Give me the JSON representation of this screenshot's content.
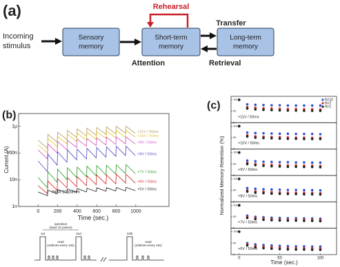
{
  "diagram": {
    "label": "(a)",
    "input": [
      "Incoming",
      "stimulus"
    ],
    "nodes": [
      {
        "label": [
          "Sensory",
          "memory"
        ]
      },
      {
        "label": [
          "Short-term",
          "memory"
        ]
      },
      {
        "label": [
          "Long-term",
          "memory"
        ]
      }
    ],
    "edges": {
      "rehearsal": "Rehearsal",
      "transfer": "Transfer",
      "attention": "Attention",
      "retrieval": "Retrieval"
    }
  },
  "pulse_diagram": {
    "operation": [
      "operation",
      "(input 10 pulses)"
    ],
    "pulses": [
      "1st",
      "2nd",
      "10th"
    ],
    "read": [
      "read",
      "(10times every 10s)"
    ]
  },
  "chart_data": [
    {
      "type": "line",
      "label": "(b)",
      "xlabel": "Time (sec.)",
      "ylabel": "Current (A)",
      "annotation": "Input 10 pulses",
      "ylog": true,
      "xlim": [
        -200,
        1340
      ],
      "ylim": [
        1e-09,
        3e-06
      ],
      "xticks": [
        0,
        200,
        400,
        600,
        800,
        1000
      ],
      "yticks": [
        {
          "value": 1e-09,
          "label": "1n"
        },
        {
          "value": 1e-08,
          "label": "10n"
        },
        {
          "value": 1e-07,
          "label": "100n"
        },
        {
          "value": 1e-06,
          "label": "1μ"
        }
      ],
      "x": [
        0,
        95,
        100,
        195,
        200,
        295,
        300,
        395,
        400,
        495,
        500,
        595,
        600,
        695,
        700,
        795,
        800,
        895,
        900,
        995
      ],
      "series": [
        {
          "name": "+11V / 50ms",
          "color": "#b9a16a",
          "values": [
            3e-07,
            1.5e-07,
            5e-07,
            2.5e-07,
            6e-07,
            3.2e-07,
            7e-07,
            3.8e-07,
            8e-07,
            4.3e-07,
            8.5e-07,
            4.6e-07,
            9e-07,
            5e-07,
            9.5e-07,
            5.2e-07,
            1e-06,
            5.5e-07,
            1e-06,
            5.5e-07
          ]
        },
        {
          "name": "+10V / 50ms",
          "color": "#e2c43c",
          "values": [
            2e-07,
            1e-07,
            3.5e-07,
            1.7e-07,
            4.2e-07,
            2.2e-07,
            5e-07,
            2.7e-07,
            5.5e-07,
            3e-07,
            6e-07,
            3.2e-07,
            6.3e-07,
            3.5e-07,
            6.6e-07,
            3.7e-07,
            7e-07,
            3.8e-07,
            7e-07,
            3.9e-07
          ]
        },
        {
          "name": "+9V / 50ms",
          "color": "#d35fc3",
          "values": [
            1.3e-07,
            6e-08,
            2.2e-07,
            1e-07,
            2.7e-07,
            1.3e-07,
            3e-07,
            1.6e-07,
            3.3e-07,
            1.8e-07,
            3.5e-07,
            1.9e-07,
            3.7e-07,
            2e-07,
            3.9e-07,
            2.1e-07,
            4e-07,
            2.2e-07,
            4e-07,
            2.2e-07
          ]
        },
        {
          "name": "+8V / 50ms",
          "color": "#5a55c4",
          "values": [
            5e-08,
            2e-08,
            9e-08,
            3.5e-08,
            1.1e-07,
            4.5e-08,
            1.3e-07,
            5.5e-08,
            1.4e-07,
            6e-08,
            1.5e-07,
            6.5e-08,
            1.6e-07,
            7e-08,
            1.7e-07,
            7.5e-08,
            1.8e-07,
            8e-08,
            1.8e-07,
            8e-08
          ]
        },
        {
          "name": "+7V / 50ms",
          "color": "#36a336",
          "values": [
            1.2e-08,
            5e-09,
            2e-08,
            8e-09,
            2.5e-08,
            1e-08,
            2.8e-08,
            1.2e-08,
            3e-08,
            1.3e-08,
            3.2e-08,
            1.4e-08,
            3.4e-08,
            1.5e-08,
            3.5e-08,
            1.6e-08,
            3.6e-08,
            1.7e-08,
            3.7e-08,
            1.7e-08
          ]
        },
        {
          "name": "+6V / 50ms",
          "color": "#d23434",
          "values": [
            6e-09,
            3e-09,
            9e-09,
            4e-09,
            1.1e-08,
            5e-09,
            1.2e-08,
            5.5e-09,
            1.3e-08,
            6e-09,
            1.4e-08,
            6.5e-09,
            1.5e-08,
            7e-09,
            1.5e-08,
            7e-09,
            1.6e-08,
            7.5e-09,
            1.6e-08,
            7.5e-09
          ]
        },
        {
          "name": "+5V / 50ms",
          "color": "#333333",
          "values": [
            3.5e-09,
            2.5e-09,
            4e-09,
            3e-09,
            4.3e-09,
            3.2e-09,
            4.5e-09,
            3.4e-09,
            4.7e-09,
            3.5e-09,
            4.8e-09,
            3.6e-09,
            5e-09,
            3.7e-09,
            5e-09,
            3.8e-09,
            5.1e-09,
            3.8e-09,
            5.2e-09,
            3.9e-09
          ]
        }
      ]
    },
    {
      "type": "scatter",
      "label": "(c)",
      "xlabel": "Time (sec.)",
      "ylabel": "Normalized Memory Retention (%)",
      "xlim": [
        -10,
        120
      ],
      "ylim": [
        0,
        115
      ],
      "xticks": [
        0,
        50,
        100
      ],
      "yticks": [
        0,
        50,
        100
      ],
      "x": [
        0,
        10,
        20,
        30,
        40,
        50,
        60,
        70,
        80,
        90,
        100
      ],
      "panels": [
        {
          "label": "+11V / 50ms",
          "series": [
            {
              "name": "N=10",
              "color": "#3050d0",
              "values": [
                100,
                80,
                78,
                77,
                76,
                76,
                75,
                75,
                75,
                75,
                75
              ]
            },
            {
              "name": "N=2",
              "color": "#d03030",
              "values": [
                100,
                68,
                65,
                63,
                62,
                61,
                60,
                60,
                59,
                59,
                58
              ]
            },
            {
              "name": "N=1",
              "color": "#202020",
              "values": [
                100,
                62,
                58,
                56,
                55,
                54,
                53,
                53,
                52,
                52,
                52
              ]
            }
          ]
        },
        {
          "label": "+10V / 50ms",
          "series": [
            {
              "color": "#3050d0",
              "values": [
                100,
                72,
                70,
                69,
                68,
                67,
                67,
                66,
                66,
                66,
                65
              ]
            },
            {
              "color": "#d03030",
              "values": [
                100,
                60,
                56,
                54,
                53,
                52,
                51,
                50,
                50,
                49,
                49
              ]
            },
            {
              "color": "#202020",
              "values": [
                100,
                55,
                50,
                48,
                47,
                46,
                45,
                45,
                44,
                44,
                44
              ]
            }
          ]
        },
        {
          "label": "+9V / 50ms",
          "series": [
            {
              "color": "#3050d0",
              "values": [
                100,
                65,
                62,
                60,
                59,
                58,
                58,
                57,
                57,
                56,
                56
              ]
            },
            {
              "color": "#d03030",
              "values": [
                100,
                55,
                50,
                48,
                46,
                45,
                44,
                44,
                43,
                43,
                42
              ]
            },
            {
              "color": "#202020",
              "values": [
                100,
                50,
                45,
                42,
                40,
                39,
                38,
                38,
                37,
                37,
                36
              ]
            }
          ]
        },
        {
          "label": "+8V / 50ms",
          "series": [
            {
              "color": "#3050d0",
              "values": [
                100,
                60,
                57,
                55,
                54,
                53,
                52,
                52,
                51,
                51,
                50
              ]
            },
            {
              "color": "#d03030",
              "values": [
                100,
                50,
                46,
                44,
                42,
                41,
                40,
                40,
                39,
                39,
                38
              ]
            },
            {
              "color": "#202020",
              "values": [
                100,
                45,
                40,
                38,
                36,
                35,
                34,
                34,
                33,
                33,
                32
              ]
            }
          ]
        },
        {
          "label": "+7V / 50ms",
          "series": [
            {
              "color": "#3050d0",
              "values": [
                100,
                55,
                50,
                48,
                46,
                45,
                44,
                44,
                43,
                43,
                42
              ]
            },
            {
              "color": "#d03030",
              "values": [
                100,
                50,
                45,
                42,
                40,
                39,
                38,
                38,
                37,
                37,
                36
              ]
            },
            {
              "color": "#202020",
              "values": [
                100,
                45,
                40,
                37,
                35,
                34,
                33,
                33,
                32,
                32,
                31
              ]
            }
          ]
        },
        {
          "label": "+6V / 50ms",
          "series": [
            {
              "color": "#3050d0",
              "values": [
                100,
                50,
                45,
                42,
                40,
                38,
                37,
                36,
                36,
                35,
                35
              ]
            },
            {
              "color": "#d03030",
              "values": [
                100,
                45,
                38,
                34,
                32,
                30,
                29,
                28,
                28,
                27,
                27
              ]
            },
            {
              "color": "#202020",
              "values": [
                100,
                40,
                32,
                28,
                26,
                24,
                23,
                22,
                22,
                21,
                21
              ]
            }
          ]
        }
      ]
    }
  ]
}
